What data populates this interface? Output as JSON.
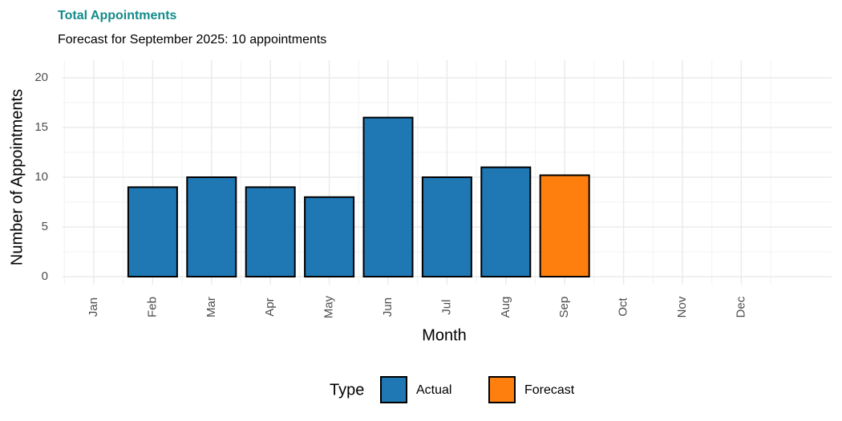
{
  "chart_data": {
    "type": "bar",
    "title": "Total Appointments",
    "subtitle": "Forecast for September 2025: 10 appointments",
    "x_label": "Month",
    "y_label": "Number of Appointments",
    "categories": [
      "Jan",
      "Feb",
      "Mar",
      "Apr",
      "May",
      "Jun",
      "Jul",
      "Aug",
      "Sep",
      "Oct",
      "Nov",
      "Dec"
    ],
    "series": [
      {
        "name": "Actual",
        "color": "#1f77b4",
        "values": [
          null,
          9,
          10,
          9,
          8,
          16,
          10,
          11,
          null,
          null,
          null,
          null
        ]
      },
      {
        "name": "Forecast",
        "color": "#ff7f0e",
        "values": [
          null,
          null,
          null,
          null,
          null,
          null,
          null,
          null,
          10.2,
          null,
          null,
          null
        ]
      }
    ],
    "ylim": [
      0,
      20
    ],
    "yticks": [
      0,
      5,
      10,
      15,
      20
    ],
    "grid": true,
    "legend_title": "Type",
    "legend_position": "bottom"
  }
}
